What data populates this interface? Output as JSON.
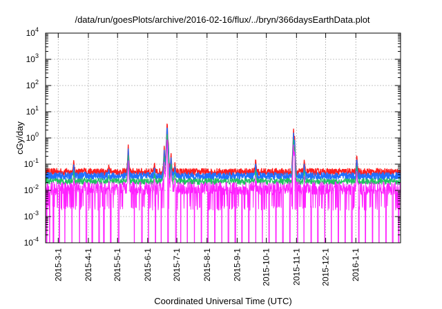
{
  "chart_data": {
    "type": "line",
    "title": "/data/run/goesPlots/archive/2016-02-16/flux/../bryn/366daysEarthData.plot",
    "xlabel": "Coordinated Universal Time (UTC)",
    "ylabel": "cGy/day",
    "y_scale": "log",
    "ylim": [
      0.0001,
      10000
    ],
    "xlim": [
      "2015-02-16",
      "2016-02-16"
    ],
    "grid": true,
    "legend": "none",
    "y_ticks": [
      {
        "value": 0.0001,
        "base": "10",
        "exp": "-4"
      },
      {
        "value": 0.001,
        "base": "10",
        "exp": "-3"
      },
      {
        "value": 0.01,
        "base": "10",
        "exp": "-2"
      },
      {
        "value": 0.1,
        "base": "10",
        "exp": "-1"
      },
      {
        "value": 1,
        "base": "10",
        "exp": "0"
      },
      {
        "value": 10,
        "base": "10",
        "exp": "1"
      },
      {
        "value": 100,
        "base": "10",
        "exp": "2"
      },
      {
        "value": 1000,
        "base": "10",
        "exp": "3"
      },
      {
        "value": 10000,
        "base": "10",
        "exp": "4"
      }
    ],
    "x_ticks": [
      {
        "date": "2015-03-01",
        "label": "2015-3-1"
      },
      {
        "date": "2015-04-01",
        "label": "2015-4-1"
      },
      {
        "date": "2015-05-01",
        "label": "2015-5-1"
      },
      {
        "date": "2015-06-01",
        "label": "2015-6-1"
      },
      {
        "date": "2015-07-01",
        "label": "2015-7-1"
      },
      {
        "date": "2015-08-01",
        "label": "2015-8-1"
      },
      {
        "date": "2015-09-01",
        "label": "2015-9-1"
      },
      {
        "date": "2015-10-01",
        "label": "2015-10-1"
      },
      {
        "date": "2015-11-01",
        "label": "2015-11-1"
      },
      {
        "date": "2015-12-01",
        "label": "2015-12-1"
      },
      {
        "date": "2016-01-01",
        "label": "2016-1-1"
      }
    ],
    "series": [
      {
        "color": "#ff2020",
        "baseline": 0.05,
        "noise": 0.14
      },
      {
        "color": "#2070ff",
        "baseline": 0.035,
        "noise": 0.14
      },
      {
        "color": "#20c060",
        "baseline": 0.022,
        "noise": 0.12
      },
      {
        "color": "#ff20ff",
        "baseline": 0.012,
        "noise": 0.25
      }
    ],
    "events": [
      {
        "date": "2015-03-17",
        "peak": 0.15
      },
      {
        "date": "2015-03-28",
        "peak": 0.08
      },
      {
        "date": "2015-04-22",
        "peak": 0.1
      },
      {
        "date": "2015-05-12",
        "peak": 0.55
      },
      {
        "date": "2015-06-08",
        "peak": 0.12
      },
      {
        "date": "2015-06-18",
        "peak": 0.5
      },
      {
        "date": "2015-06-19",
        "peak": 0.2
      },
      {
        "date": "2015-06-21",
        "peak": 4.5
      },
      {
        "date": "2015-06-22",
        "peak": 0.8
      },
      {
        "date": "2015-06-25",
        "peak": 0.28
      },
      {
        "date": "2015-06-29",
        "peak": 0.12
      },
      {
        "date": "2015-09-20",
        "peak": 0.18
      },
      {
        "date": "2015-10-29",
        "peak": 2.3
      },
      {
        "date": "2015-10-30",
        "peak": 1.2
      },
      {
        "date": "2015-11-09",
        "peak": 0.16
      },
      {
        "date": "2016-01-02",
        "peak": 0.25
      }
    ],
    "magenta_dropouts": [
      "2015-02-17",
      "2015-02-20",
      "2015-02-24",
      "2015-03-02",
      "2015-03-08",
      "2015-03-15",
      "2015-03-23",
      "2015-03-30",
      "2015-04-05",
      "2015-04-12",
      "2015-04-17",
      "2015-04-24",
      "2015-05-02",
      "2015-05-09",
      "2015-05-18",
      "2015-05-26",
      "2015-06-02",
      "2015-06-09",
      "2015-06-15",
      "2015-06-22",
      "2015-06-30",
      "2015-07-05",
      "2015-07-12",
      "2015-07-19",
      "2015-07-26",
      "2015-08-02",
      "2015-08-09",
      "2015-08-16",
      "2015-08-23",
      "2015-08-30",
      "2015-09-06",
      "2015-09-13",
      "2015-09-20",
      "2015-09-27",
      "2015-10-04",
      "2015-10-11",
      "2015-10-18",
      "2015-10-25",
      "2015-11-02",
      "2015-11-09",
      "2015-11-16",
      "2015-11-23",
      "2015-11-30",
      "2015-12-07",
      "2015-12-14",
      "2015-12-21",
      "2015-12-28",
      "2016-01-04",
      "2016-01-11",
      "2016-01-18",
      "2016-01-25",
      "2016-02-01",
      "2016-02-08",
      "2016-02-14"
    ]
  }
}
